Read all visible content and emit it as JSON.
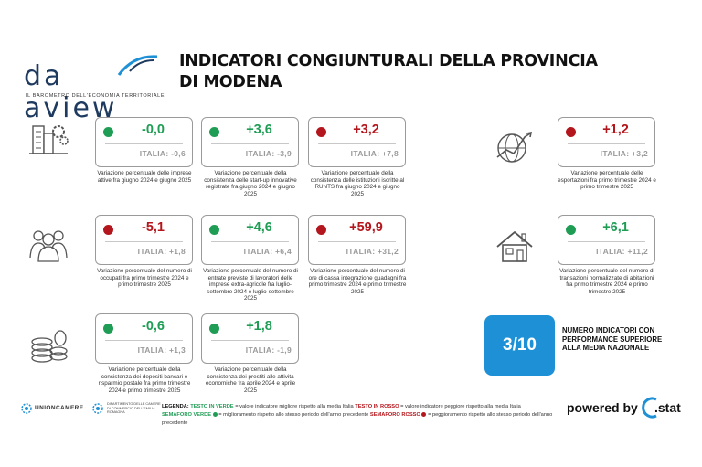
{
  "header": {
    "logo_word": "da aview",
    "logo_tagline": "IL BAROMETRO DELL'ECONOMIA TERRITORIALE",
    "title": "INDICATORI CONGIUNTURALI DELLA PROVINCIA DI MODENA"
  },
  "colors": {
    "green": "#1f9d55",
    "red": "#b3171d",
    "accent_blue": "#1e90d6"
  },
  "categories": [
    {
      "icon": "buildings-gears-icon"
    },
    {
      "icon": "globe-trade-icon"
    },
    {
      "icon": "people-group-icon"
    },
    {
      "icon": "house-icon"
    },
    {
      "icon": "coins-icon"
    }
  ],
  "cards": [
    {
      "status": "green",
      "value": "-0,0",
      "italia": "ITALIA: -0,6",
      "desc": "Variazione percentuale delle imprese attive fra giugno 2024 e giugno 2025"
    },
    {
      "status": "green",
      "value": "+3,6",
      "italia": "ITALIA: -3,9",
      "desc": "Variazione percentuale della consistenza delle start-up innovative registrate fra giugno 2024 e giugno 2025"
    },
    {
      "status": "red",
      "value": "+3,2",
      "italia": "ITALIA: +7,8",
      "desc": "Variazione percentuale della consistenza delle istituzioni iscritte al RUNTS fra giugno 2024 e giugno 2025"
    },
    {
      "status": "red",
      "value": "+1,2",
      "italia": "ITALIA: +3,2",
      "desc": "Variazione percentuale delle esportazioni fra primo trimestre 2024 e primo trimestre 2025"
    },
    {
      "status": "red",
      "value": "-5,1",
      "italia": "ITALIA: +1,8",
      "desc": "Variazione percentuale del numero di occupati fra primo trimestre 2024 e primo trimestre 2025"
    },
    {
      "status": "green",
      "value": "+4,6",
      "italia": "ITALIA: +6,4",
      "desc": "Variazione percentuale del numero di entrate previste di lavoratori delle imprese extra-agricole fra luglio-settembre 2024 e luglio-settembre 2025"
    },
    {
      "status": "red",
      "value": "+59,9",
      "italia": "ITALIA: +31,2",
      "desc": "Variazione percentuale del numero di ore di cassa integrazione guadagni fra primo trimestre 2024 e primo trimestre 2025"
    },
    {
      "status": "green",
      "value": "+6,1",
      "italia": "ITALIA: +11,2",
      "desc": "Variazione percentuale del numero di transazioni normalizzate di abitazioni fra primo trimestre 2024 e primo trimestre 2025"
    },
    {
      "status": "green",
      "value": "-0,6",
      "italia": "ITALIA: +1,3",
      "desc": "Variazione percentuale della consistenza dei depositi bancari e risparmio postale fra primo trimestre 2024 e primo trimestre 2025"
    },
    {
      "status": "green",
      "value": "+1,8",
      "italia": "ITALIA: -1,9",
      "desc": "Variazione percentuale della consistenza dei prestiti alle attività economiche fra aprile 2024 e aprile 2025"
    }
  ],
  "score": {
    "value": "3/10",
    "text": "NUMERO INDICATORI CON PERFORMANCE SUPERIORE ALLA MEDIA NAZIONALE"
  },
  "footer": {
    "unioncamere": "UNIONCAMERE",
    "department": "DIPARTIMENTO DELLE CAMERE DI COMMERCIO DELL'EMILIA-ROMAGNA",
    "legend_label": "LEGENDA:",
    "legend_green_text": "TESTO IN VERDE",
    "legend_green_desc": "= valore indicatore migliore rispetto alla media Italia",
    "legend_red_text": "TESTO IN ROSSO",
    "legend_red_desc": "= valore indicatore peggiore rispetto alla media Italia",
    "legend_green_light": "SEMAFORO VERDE",
    "legend_green_light_desc": "= miglioramento rispetto allo stesso periodo dell'anno precedente",
    "legend_red_light": "SEMAFORO ROSSO",
    "legend_red_light_desc": "= peggioramento rispetto allo stesso periodo dell'anno precedente",
    "powered_by": "powered by",
    "cstat": ".stat"
  }
}
